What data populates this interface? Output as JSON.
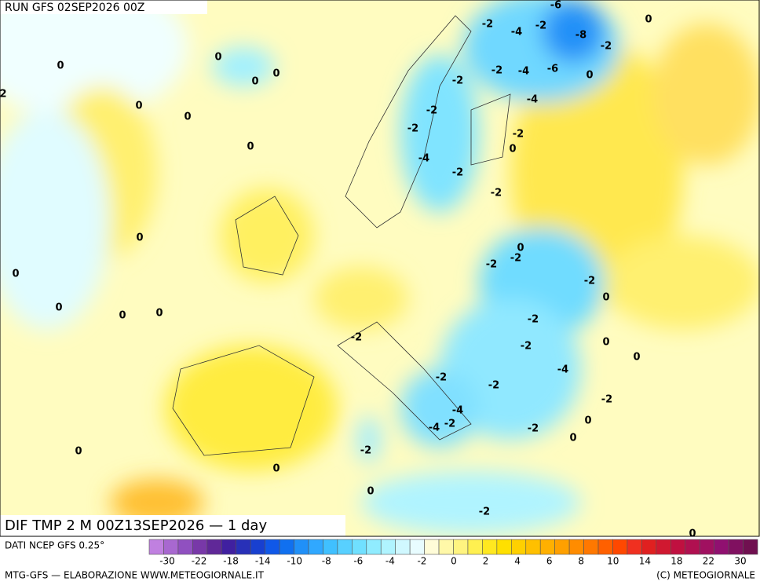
{
  "header": {
    "run": "RUN GFS 02SEP2026 00Z"
  },
  "map_title": "DIF TMP 2 M 00Z13SEP2026 — 1 day",
  "contour_labels": [
    0,
    0,
    0,
    0,
    0,
    0,
    0,
    0,
    0,
    0,
    0,
    0,
    0,
    0,
    0,
    0,
    0,
    0,
    0,
    0,
    0,
    0,
    0,
    0,
    0,
    2,
    -2,
    -2,
    -2,
    -2,
    -2,
    -2,
    -2,
    -2,
    -2,
    -2,
    -2,
    -2,
    -2,
    -2,
    -2,
    -2,
    -2,
    -2,
    -2,
    -2,
    -2,
    -2,
    -2,
    -4,
    -4,
    -4,
    -4,
    -4,
    -4,
    -4,
    -6,
    -6,
    -8
  ],
  "colorbar": {
    "source": "DATI NCEP GFS 0.25°",
    "colors": [
      "#c080e0",
      "#a868d0",
      "#9050c0",
      "#7838a8",
      "#602898",
      "#4020a0",
      "#2830b8",
      "#1840d0",
      "#1058e8",
      "#1070f0",
      "#2090f8",
      "#30a8ff",
      "#40c0ff",
      "#58d0ff",
      "#70e0ff",
      "#90ecff",
      "#b0f4ff",
      "#d0f8ff",
      "#e8fcff",
      "#fffcd8",
      "#fff8a8",
      "#fff480",
      "#fff050",
      "#ffe820",
      "#ffe000",
      "#ffd000",
      "#ffc000",
      "#ffb000",
      "#ffa000",
      "#ff8c00",
      "#ff7800",
      "#ff6000",
      "#ff4800",
      "#f03020",
      "#e02020",
      "#d01830",
      "#c01040",
      "#b01050",
      "#a01060",
      "#901070",
      "#801060",
      "#701050"
    ],
    "ticks": [
      -30,
      -22,
      -18,
      -14,
      -10,
      -8,
      -6,
      -4,
      -2,
      0,
      2,
      4,
      6,
      8,
      10,
      14,
      18,
      22,
      30
    ]
  },
  "footer": {
    "left": "MTG-GFS — ELABORAZIONE WWW.METEOGIORNALE.IT",
    "right": "(C) METEOGIORNALE"
  }
}
